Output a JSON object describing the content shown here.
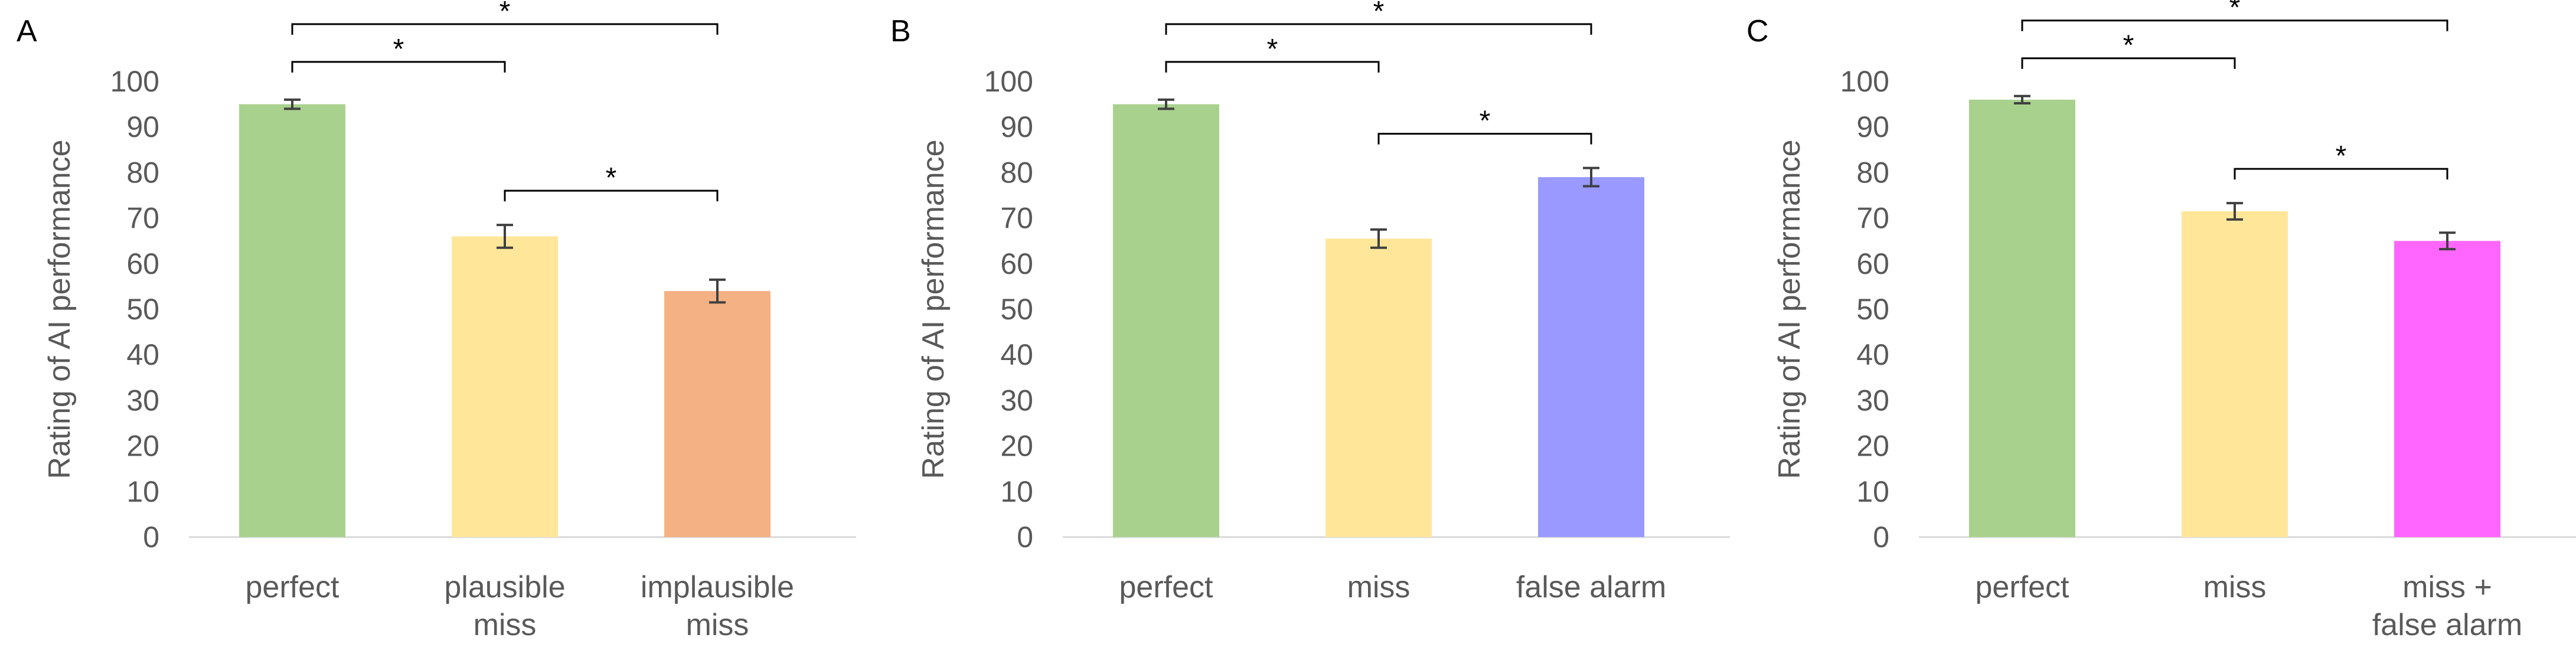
{
  "chart_data": [
    {
      "type": "bar",
      "panel": "A",
      "ylabel": "Rating of AI performance",
      "ylim": [
        0,
        100
      ],
      "yticks": [
        "0",
        "10",
        "20",
        "30",
        "40",
        "50",
        "60",
        "70",
        "80",
        "90",
        "100"
      ],
      "categories": [
        [
          "perfect"
        ],
        [
          "plausible",
          "miss"
        ],
        [
          "implausible",
          "miss"
        ]
      ],
      "values": [
        95,
        66,
        54
      ],
      "errors": [
        1,
        2.5,
        2.5
      ],
      "colors": [
        "#a9d18e",
        "#ffe699",
        "#f4b183"
      ],
      "significance": [
        {
          "from": 0,
          "to": 1,
          "label": "*"
        },
        {
          "from": 0,
          "to": 2,
          "label": "*"
        },
        {
          "from": 1,
          "to": 2,
          "label": "*"
        }
      ]
    },
    {
      "type": "bar",
      "panel": "B",
      "ylabel": "Rating of AI performance",
      "ylim": [
        0,
        100
      ],
      "yticks": [
        "0",
        "10",
        "20",
        "30",
        "40",
        "50",
        "60",
        "70",
        "80",
        "90",
        "100"
      ],
      "categories": [
        [
          "perfect"
        ],
        [
          "miss"
        ],
        [
          "false alarm"
        ]
      ],
      "values": [
        95,
        65.5,
        79
      ],
      "errors": [
        1,
        2,
        2
      ],
      "colors": [
        "#a9d18e",
        "#ffe699",
        "#9999ff"
      ],
      "significance": [
        {
          "from": 0,
          "to": 1,
          "label": "*"
        },
        {
          "from": 0,
          "to": 2,
          "label": "*"
        },
        {
          "from": 1,
          "to": 2,
          "label": "*"
        }
      ]
    },
    {
      "type": "bar",
      "panel": "C",
      "ylabel": "Rating of AI performance",
      "ylim": [
        0,
        100
      ],
      "yticks": [
        "0",
        "10",
        "20",
        "30",
        "40",
        "50",
        "60",
        "70",
        "80",
        "90",
        "100"
      ],
      "categories": [
        [
          "perfect"
        ],
        [
          "miss"
        ],
        [
          "miss +",
          "false alarm"
        ]
      ],
      "values": [
        96,
        71.5,
        65
      ],
      "errors": [
        0.8,
        1.8,
        1.8
      ],
      "colors": [
        "#a9d18e",
        "#ffe699",
        "#ff66ff"
      ],
      "significance": [
        {
          "from": 0,
          "to": 1,
          "label": "*"
        },
        {
          "from": 0,
          "to": 2,
          "label": "*"
        },
        {
          "from": 1,
          "to": 2,
          "label": "*"
        }
      ]
    }
  ]
}
